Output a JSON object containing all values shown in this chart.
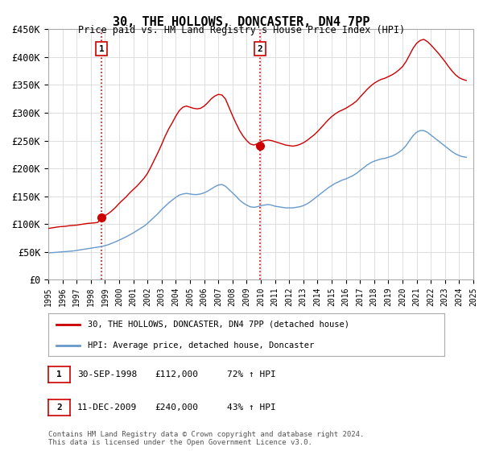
{
  "title": "30, THE HOLLOWS, DONCASTER, DN4 7PP",
  "subtitle": "Price paid vs. HM Land Registry's House Price Index (HPI)",
  "legend_line1": "30, THE HOLLOWS, DONCASTER, DN4 7PP (detached house)",
  "legend_line2": "HPI: Average price, detached house, Doncaster",
  "sale1_label": "1",
  "sale1_date": "30-SEP-1998",
  "sale1_price": "£112,000",
  "sale1_hpi": "72% ↑ HPI",
  "sale1_year": 1998.75,
  "sale1_value": 112000,
  "sale2_label": "2",
  "sale2_date": "11-DEC-2009",
  "sale2_price": "£240,000",
  "sale2_hpi": "43% ↑ HPI",
  "sale2_year": 2009.95,
  "sale2_value": 240000,
  "footer": "Contains HM Land Registry data © Crown copyright and database right 2024.\nThis data is licensed under the Open Government Licence v3.0.",
  "house_color": "#cc0000",
  "hpi_color": "#6699cc",
  "vline_color": "#cc0000",
  "ylim": [
    0,
    450000
  ],
  "yticks": [
    0,
    50000,
    100000,
    150000,
    200000,
    250000,
    300000,
    350000,
    400000,
    450000
  ],
  "ytick_labels": [
    "£0",
    "£50K",
    "£100K",
    "£150K",
    "£200K",
    "£250K",
    "£300K",
    "£350K",
    "£400K",
    "£450K"
  ],
  "house_x": [
    1995.0,
    1995.25,
    1995.5,
    1995.75,
    1996.0,
    1996.25,
    1996.5,
    1996.75,
    1997.0,
    1997.25,
    1997.5,
    1997.75,
    1998.0,
    1998.25,
    1998.5,
    1998.75,
    1999.0,
    1999.25,
    1999.5,
    1999.75,
    2000.0,
    2000.25,
    2000.5,
    2000.75,
    2001.0,
    2001.25,
    2001.5,
    2001.75,
    2002.0,
    2002.25,
    2002.5,
    2002.75,
    2003.0,
    2003.25,
    2003.5,
    2003.75,
    2004.0,
    2004.25,
    2004.5,
    2004.75,
    2005.0,
    2005.25,
    2005.5,
    2005.75,
    2006.0,
    2006.25,
    2006.5,
    2006.75,
    2007.0,
    2007.25,
    2007.5,
    2007.75,
    2008.0,
    2008.25,
    2008.5,
    2008.75,
    2009.0,
    2009.25,
    2009.5,
    2009.75,
    2010.0,
    2010.25,
    2010.5,
    2010.75,
    2011.0,
    2011.25,
    2011.5,
    2011.75,
    2012.0,
    2012.25,
    2012.5,
    2012.75,
    2013.0,
    2013.25,
    2013.5,
    2013.75,
    2014.0,
    2014.25,
    2014.5,
    2014.75,
    2015.0,
    2015.25,
    2015.5,
    2015.75,
    2016.0,
    2016.25,
    2016.5,
    2016.75,
    2017.0,
    2017.25,
    2017.5,
    2017.75,
    2018.0,
    2018.25,
    2018.5,
    2018.75,
    2019.0,
    2019.25,
    2019.5,
    2019.75,
    2020.0,
    2020.25,
    2020.5,
    2020.75,
    2021.0,
    2021.25,
    2021.5,
    2021.75,
    2022.0,
    2022.25,
    2022.5,
    2022.75,
    2023.0,
    2023.25,
    2023.5,
    2023.75,
    2024.0,
    2024.25,
    2024.5
  ],
  "house_y": [
    92000,
    93000,
    94000,
    95000,
    95500,
    96000,
    97000,
    97500,
    98000,
    99000,
    100000,
    101000,
    101500,
    102000,
    103000,
    112000,
    115000,
    119000,
    124000,
    130000,
    137000,
    143000,
    149000,
    156000,
    162000,
    168000,
    175000,
    182000,
    191000,
    203000,
    216000,
    229000,
    243000,
    258000,
    271000,
    282000,
    294000,
    304000,
    310000,
    312000,
    310000,
    308000,
    307000,
    308000,
    312000,
    318000,
    325000,
    330000,
    333000,
    332000,
    325000,
    310000,
    295000,
    281000,
    268000,
    258000,
    250000,
    244000,
    242000,
    244000,
    248000,
    250000,
    251000,
    250000,
    248000,
    246000,
    244000,
    242000,
    241000,
    240000,
    241000,
    243000,
    246000,
    250000,
    255000,
    260000,
    266000,
    273000,
    280000,
    287000,
    293000,
    298000,
    302000,
    305000,
    308000,
    312000,
    316000,
    321000,
    328000,
    335000,
    342000,
    348000,
    353000,
    357000,
    360000,
    362000,
    365000,
    368000,
    372000,
    377000,
    383000,
    392000,
    404000,
    416000,
    425000,
    430000,
    432000,
    428000,
    422000,
    415000,
    408000,
    400000,
    392000,
    383000,
    375000,
    368000,
    363000,
    360000,
    358000
  ],
  "hpi_x": [
    1995.0,
    1995.25,
    1995.5,
    1995.75,
    1996.0,
    1996.25,
    1996.5,
    1996.75,
    1997.0,
    1997.25,
    1997.5,
    1997.75,
    1998.0,
    1998.25,
    1998.5,
    1998.75,
    1999.0,
    1999.25,
    1999.5,
    1999.75,
    2000.0,
    2000.25,
    2000.5,
    2000.75,
    2001.0,
    2001.25,
    2001.5,
    2001.75,
    2002.0,
    2002.25,
    2002.5,
    2002.75,
    2003.0,
    2003.25,
    2003.5,
    2003.75,
    2004.0,
    2004.25,
    2004.5,
    2004.75,
    2005.0,
    2005.25,
    2005.5,
    2005.75,
    2006.0,
    2006.25,
    2006.5,
    2006.75,
    2007.0,
    2007.25,
    2007.5,
    2007.75,
    2008.0,
    2008.25,
    2008.5,
    2008.75,
    2009.0,
    2009.25,
    2009.5,
    2009.75,
    2010.0,
    2010.25,
    2010.5,
    2010.75,
    2011.0,
    2011.25,
    2011.5,
    2011.75,
    2012.0,
    2012.25,
    2012.5,
    2012.75,
    2013.0,
    2013.25,
    2013.5,
    2013.75,
    2014.0,
    2014.25,
    2014.5,
    2014.75,
    2015.0,
    2015.25,
    2015.5,
    2015.75,
    2016.0,
    2016.25,
    2016.5,
    2016.75,
    2017.0,
    2017.25,
    2017.5,
    2017.75,
    2018.0,
    2018.25,
    2018.5,
    2018.75,
    2019.0,
    2019.25,
    2019.5,
    2019.75,
    2020.0,
    2020.25,
    2020.5,
    2020.75,
    2021.0,
    2021.25,
    2021.5,
    2021.75,
    2022.0,
    2022.25,
    2022.5,
    2022.75,
    2023.0,
    2023.25,
    2023.5,
    2023.75,
    2024.0,
    2024.25,
    2024.5
  ],
  "hpi_y": [
    48000,
    48500,
    49000,
    49500,
    50000,
    50500,
    51000,
    51500,
    52500,
    53500,
    54500,
    55500,
    56500,
    57500,
    58500,
    59500,
    61000,
    63000,
    65500,
    68000,
    71000,
    74000,
    77000,
    80500,
    84000,
    88000,
    92000,
    96000,
    101000,
    107000,
    113000,
    119000,
    126000,
    132000,
    138000,
    143000,
    148000,
    152000,
    154000,
    155000,
    154000,
    153000,
    153000,
    154000,
    156000,
    159000,
    163000,
    167000,
    170000,
    171000,
    168000,
    162000,
    156000,
    150000,
    143000,
    138000,
    134000,
    131000,
    130000,
    131000,
    133000,
    134000,
    135000,
    134000,
    132000,
    131000,
    130000,
    129000,
    129000,
    129000,
    130000,
    131000,
    133000,
    136000,
    140000,
    145000,
    150000,
    155000,
    160000,
    165000,
    169000,
    173000,
    176000,
    179000,
    181000,
    184000,
    187000,
    191000,
    196000,
    201000,
    206000,
    210000,
    213000,
    215000,
    217000,
    218000,
    220000,
    222000,
    225000,
    229000,
    234000,
    241000,
    250000,
    259000,
    265000,
    268000,
    268000,
    265000,
    260000,
    255000,
    250000,
    245000,
    240000,
    235000,
    230000,
    226000,
    223000,
    221000,
    220000
  ]
}
